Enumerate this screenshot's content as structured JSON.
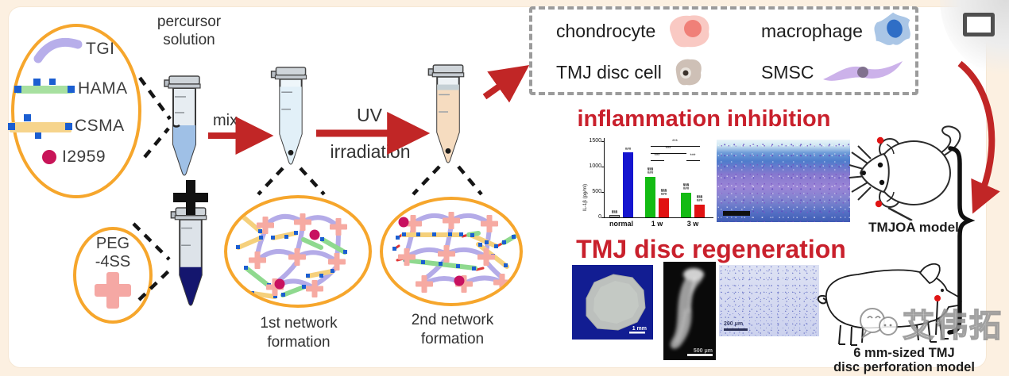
{
  "precursor": {
    "line1": "percursor",
    "line2": "solution"
  },
  "components": {
    "items": [
      {
        "name": "TGI",
        "icon": "tgi-polymer-arc",
        "color": "#b7aeea"
      },
      {
        "name": "HAMA",
        "icon": "hama-rod",
        "color": "#a7e0a0"
      },
      {
        "name": "CSMA",
        "icon": "csma-rod",
        "color": "#f6d48c"
      },
      {
        "name": "I2959",
        "icon": "i2959-dot",
        "color": "#c81458"
      }
    ]
  },
  "peg": {
    "line1": "PEG",
    "line2": "-4SS",
    "icon": "peg-cross",
    "color": "#f5a8a4"
  },
  "process": {
    "mix_label": "mix",
    "uv_line1": "UV",
    "uv_line2": "irradiation",
    "network1_line1": "1st network",
    "network1_line2": "formation",
    "network2_line1": "2nd network",
    "network2_line2": "formation"
  },
  "legend": {
    "items": [
      {
        "label": "chondrocyte",
        "icon": "chondrocyte-cell"
      },
      {
        "label": "macrophage",
        "icon": "macrophage-cell"
      },
      {
        "label": "TMJ disc cell",
        "icon": "tmj-disc-cell"
      },
      {
        "label": "SMSC",
        "icon": "smsc-cell"
      }
    ]
  },
  "sections": {
    "inflammation_title": "inflammation inhibition",
    "regeneration_title": "TMJ disc regeneration"
  },
  "models": {
    "mouse_label": "TMJOA model",
    "pig_line1": "6 mm-sized TMJ",
    "pig_line2": "disc perforation model"
  },
  "scale_bars": {
    "disc": "1 mm",
    "fluorescence": "500 μm",
    "histology": "200 μm"
  },
  "watermark": {
    "text": "艾伟拓"
  },
  "colors": {
    "accent_orange": "#f6a62c",
    "title_red": "#c9202c",
    "arrow_red": "#c12626",
    "navy_liquid": "#14166e",
    "peach_liquid": "#f6dcc0"
  },
  "chart_data": {
    "type": "bar",
    "title": "",
    "ylabel": "IL-1β (pg/ml)",
    "xlabel": "",
    "ylim": [
      0,
      1500
    ],
    "yticks": [
      0,
      500,
      1000,
      1500
    ],
    "grid": false,
    "categories": [
      "normal",
      "1 w",
      "3 w"
    ],
    "groups": [
      {
        "category": "normal",
        "bars": [
          {
            "color": "#ffffff",
            "value": 40,
            "label": [
              "§§§"
            ]
          },
          {
            "color": "#1515cf",
            "value": 1280,
            "label": [
              "###"
            ]
          }
        ]
      },
      {
        "category": "1 w",
        "bars": [
          {
            "color": "#13bb13",
            "value": 800,
            "label": [
              "§§§",
              "###"
            ]
          },
          {
            "color": "#e11212",
            "value": 380,
            "label": [
              "§§§",
              "###"
            ]
          }
        ]
      },
      {
        "category": "3 w",
        "bars": [
          {
            "color": "#13bb13",
            "value": 480,
            "label": [
              "§§§",
              "###"
            ]
          },
          {
            "color": "#e11212",
            "value": 250,
            "label": [
              "§§§",
              "###"
            ]
          }
        ]
      }
    ],
    "significance": [
      {
        "label": "***",
        "from": [
          1,
          0
        ],
        "to": [
          2,
          1
        ],
        "row": 0
      },
      {
        "label": "***",
        "from": [
          1,
          0
        ],
        "to": [
          2,
          0
        ],
        "row": 1
      },
      {
        "label": "***",
        "from": [
          1,
          0
        ],
        "to": [
          1,
          1
        ],
        "row": 2
      },
      {
        "label": "***",
        "from": [
          2,
          0
        ],
        "to": [
          2,
          1
        ],
        "row": 2
      }
    ]
  }
}
